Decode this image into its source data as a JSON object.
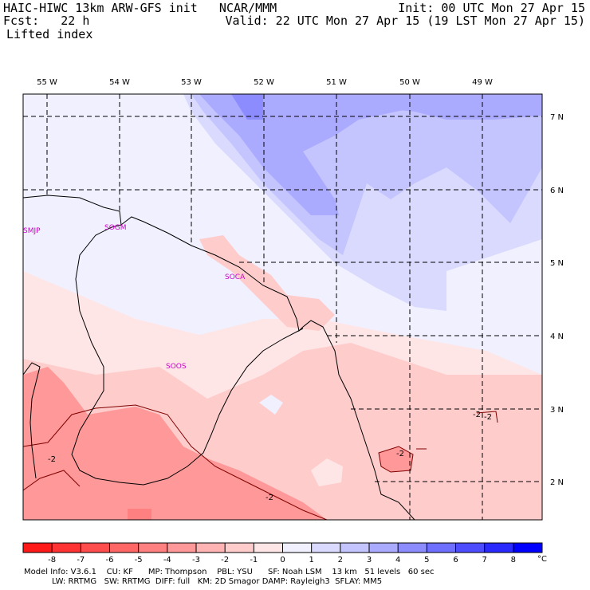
{
  "header": {
    "title_left": "HAIC-HIWC 13km ARW-GFS init   NCAR/MMM",
    "init": "Init: 00 UTC Mon 27 Apr 15",
    "fcst": "Fcst:   22 h",
    "valid": "Valid: 22 UTC Mon 27 Apr 15 (19 LST Mon 27 Apr 15)",
    "field": "Lifted index"
  },
  "map": {
    "lon_labels": [
      "55 W",
      "54 W",
      "53 W",
      "52 W",
      "51 W",
      "50 W",
      "49 W"
    ],
    "lat_labels": [
      "7 N",
      "6 N",
      "5 N",
      "4 N",
      "3 N",
      "2 N"
    ],
    "stations": [
      "SMJP",
      "SOGM",
      "SOCA",
      "SOOS"
    ],
    "contour_labels": [
      "-2",
      "-2",
      "-2",
      "-2",
      "-2"
    ]
  },
  "colorbar": {
    "ticks": [
      "-8",
      "-7",
      "-6",
      "-5",
      "-4",
      "-3",
      "-2",
      "-1",
      "0",
      "1",
      "2",
      "3",
      "4",
      "5",
      "6",
      "7",
      "8"
    ],
    "unit": "°C",
    "colors": [
      "#ff1a1a",
      "#ff3333",
      "#ff4d4d",
      "#ff6666",
      "#ff8080",
      "#ff9999",
      "#ffb3b3",
      "#ffcccc",
      "#ffe6e6",
      "#f0f0ff",
      "#dadaff",
      "#c4c4ff",
      "#aaaaff",
      "#8c8cff",
      "#6e6eff",
      "#4d4dff",
      "#2a2aff",
      "#0000ff"
    ]
  },
  "footer": {
    "line1": "Model Info: V3.6.1    CU: KF      MP: Thompson    PBL: YSU      SF: Noah LSM    13 km   51 levels   60 sec",
    "line2": "           LW: RRTMG   SW: RRTMG  DIFF: full   KM: 2D Smagor DAMP: Rayleigh3  SFLAY: MM5"
  }
}
